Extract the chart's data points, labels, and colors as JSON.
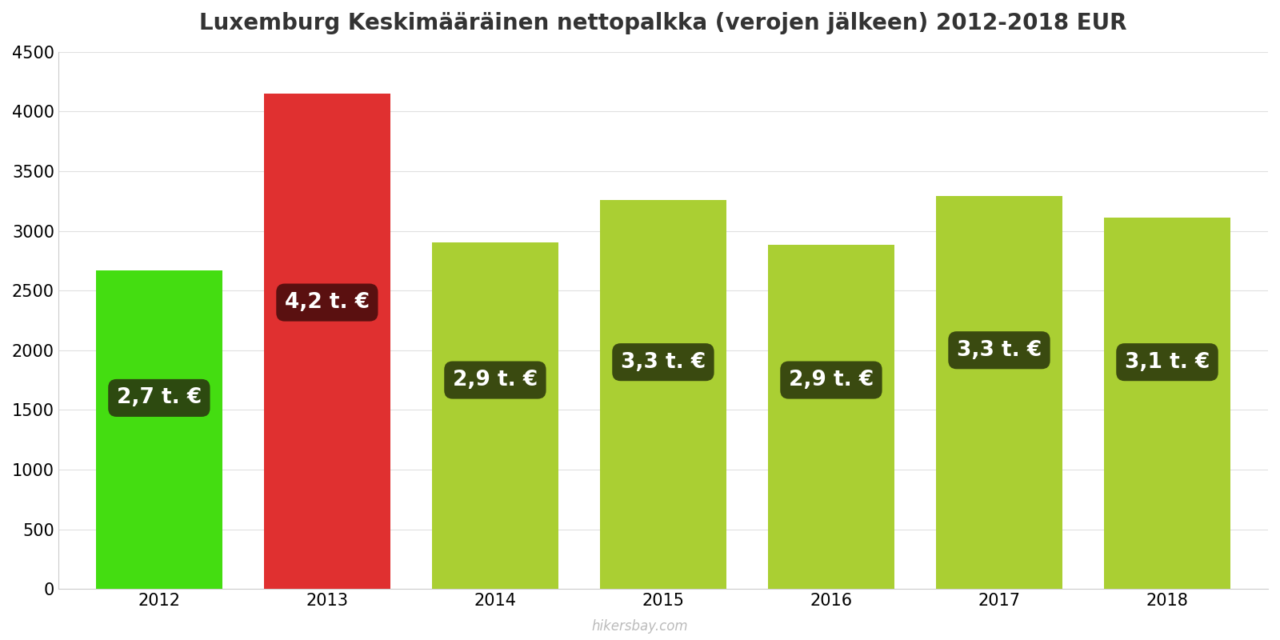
{
  "title": "Luxemburg Keskimääräinen nettopalkka (verojen jälkeen) 2012-2018 EUR",
  "years": [
    2012,
    2013,
    2014,
    2015,
    2016,
    2017,
    2018
  ],
  "values": [
    2670,
    4150,
    2900,
    3260,
    2880,
    3290,
    3110
  ],
  "bar_colors": [
    "#44dd11",
    "#e03030",
    "#aacf33",
    "#aacf33",
    "#aacf33",
    "#aacf33",
    "#aacf33"
  ],
  "label_bg_colors": [
    "#2d4a10",
    "#5a1010",
    "#3a4a10",
    "#3a4a10",
    "#3a4a10",
    "#3a4a10",
    "#3a4a10"
  ],
  "labels": [
    "2,7 t. €",
    "4,2 t. €",
    "2,9 t. €",
    "3,3 t. €",
    "2,9 t. €",
    "3,3 t. €",
    "3,1 t. €"
  ],
  "label_y_pos": [
    1600,
    2400,
    1750,
    1900,
    1750,
    2000,
    1900
  ],
  "ylim": [
    0,
    4500
  ],
  "yticks": [
    0,
    500,
    1000,
    1500,
    2000,
    2500,
    3000,
    3500,
    4000,
    4500
  ],
  "background_color": "#ffffff",
  "grid_color": "#e0e0e0",
  "watermark": "hikersbay.com",
  "title_fontsize": 20,
  "label_fontsize": 19,
  "tick_fontsize": 15,
  "bar_width": 0.75
}
